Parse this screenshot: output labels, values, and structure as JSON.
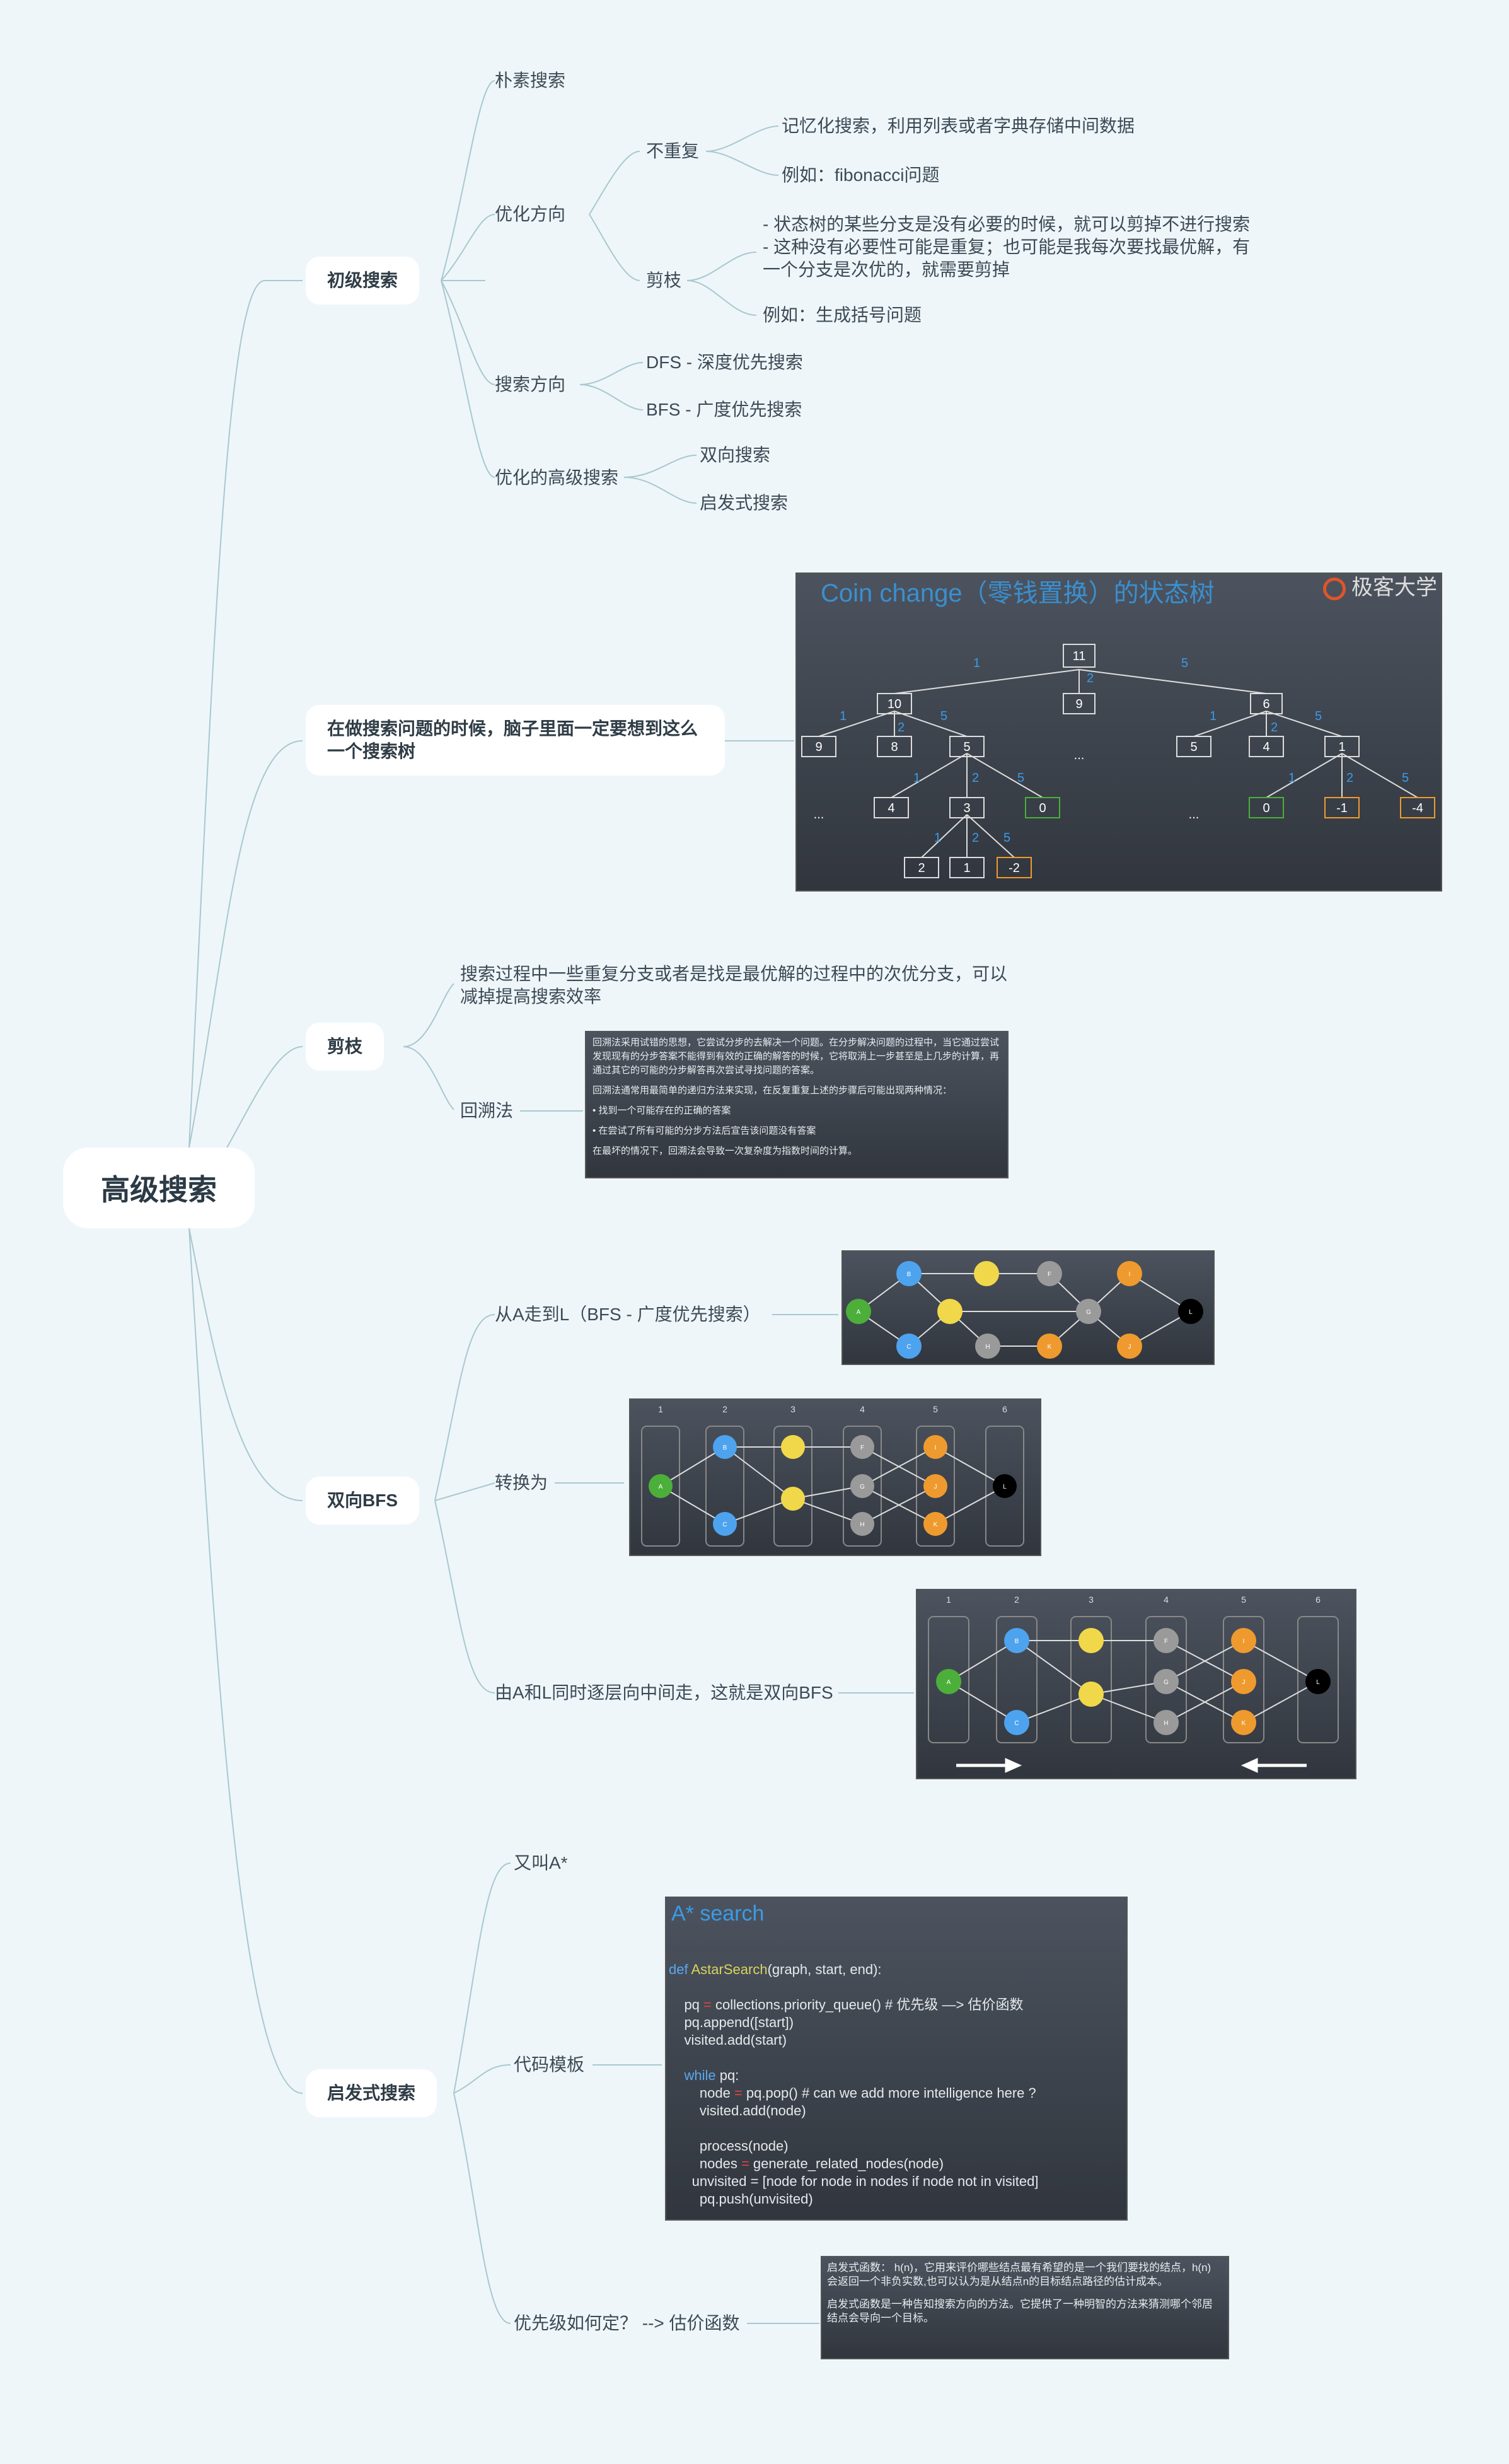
{
  "root": "高级搜索",
  "nodes": {
    "basic": {
      "label": "初级搜索",
      "naive": "朴素搜索",
      "opt_dir": "优化方向",
      "no_repeat": "不重复",
      "memo": "记忆化搜索，利用列表或者字典存储中间数据",
      "fib": "例如：fibonacci问题",
      "prune": "剪枝",
      "prune_desc": "- 状态树的某些分支是没有必要的时候，就可以剪掉不进行搜索\n- 这种没有必要性可能是重复；也可能是我每次要找最优解，有一个分支是次优的，就需要剪掉",
      "paren": "例如：生成括号问题",
      "search_dir": "搜索方向",
      "dfs": "DFS - 深度优先搜索",
      "bfs": "BFS - 广度优先搜索",
      "adv": "优化的高级搜索",
      "bidir": "双向搜索",
      "heuristic": "启发式搜索"
    },
    "tree": {
      "label": "在做搜索问题的时候，脑子里面一定要想到这么一个搜索树",
      "img_title": "Coin change（零钱置换）的状态树",
      "brand": "极客大学"
    },
    "pruning": {
      "label": "剪枝",
      "desc": "搜索过程中一些重复分支或者是找是最优解的过程中的次优分支，可以减掉提高搜索效率",
      "backtrack": "回溯法",
      "bt_text": [
        "回溯法采用试错的思想，它尝试分步的去解决一个问题。在分步解决问题的过程中，当它通过尝试发现现有的分步答案不能得到有效的正确的解答的时候，它将取消上一步甚至是上几步的计算，再通过其它的可能的分步解答再次尝试寻找问题的答案。",
        "回溯法通常用最简单的递归方法来实现，在反复重复上述的步骤后可能出现两种情况：",
        "• 找到一个可能存在的正确的答案",
        "• 在尝试了所有可能的分步方法后宣告该问题没有答案",
        "在最坏的情况下，回溯法会导致一次复杂度为指数时间的计算。"
      ]
    },
    "bibfs": {
      "label": "双向BFS",
      "a_to_l": "从A走到L（BFS - 广度优先搜索）",
      "convert": "转换为",
      "meet": "由A和L同时逐层向中间走，这就是双向BFS",
      "columns": [
        "1",
        "2",
        "3",
        "4",
        "5",
        "6"
      ]
    },
    "astar": {
      "label": "启发式搜索",
      "alias": "又叫A*",
      "template": "代码模板",
      "priority": "优先级如何定？ --> 估价函数",
      "code_title": "A* search",
      "h_text": [
        "启发式函数： h(n)，它用来评价哪些结点最有希望的是一个我们要找的结点，h(n) 会返回一个非负实数,也可以认为是从结点n的目标结点路径的估计成本。",
        "启发式函数是一种告知搜索方向的方法。它提供了一种明智的方法来猜测哪个邻居结点会导向一个目标。"
      ]
    }
  },
  "colors": {
    "line": "#a9c8cf",
    "blue": "#4ea3ef",
    "yellow": "#f1d84a",
    "gray": "#9a9a9a",
    "orange": "#ef9a2e",
    "green": "#4caf3a",
    "black": "#000000"
  }
}
